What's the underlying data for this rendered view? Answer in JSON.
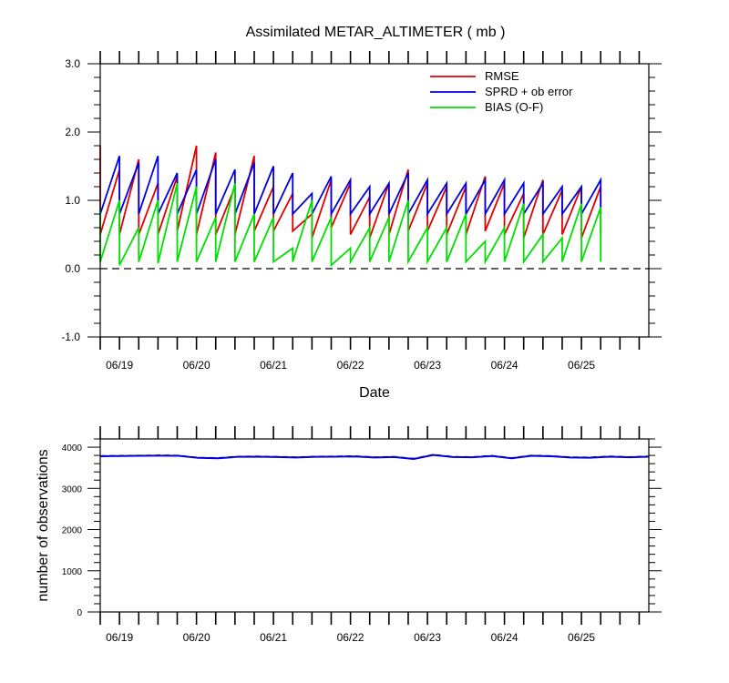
{
  "chart_data": [
    {
      "type": "line",
      "title": "Assimilated METAR_ALTIMETER ( mb )",
      "xlabel": "Date",
      "ylabel": "",
      "ylim": [
        -1.0,
        3.0
      ],
      "yticks": [
        "-1.0",
        "0.0",
        "1.0",
        "2.0",
        "3.0"
      ],
      "xlim": [
        "06/18 18Z",
        "06/25 21Z"
      ],
      "xticks": [
        "06/19",
        "06/20",
        "06/21",
        "06/22",
        "06/23",
        "06/24",
        "06/25"
      ],
      "legend": "top-right",
      "zero_line": "dashed",
      "colors": {
        "RMSE": "#e00000",
        "SPRD": "#0000e0",
        "BIAS": "#00e000"
      },
      "note_times": "6-hourly cycles starting 06/18 18Z; each cycle shows prior (high) then posterior (low) value",
      "series": [
        {
          "name": "RMSE",
          "key": "rmse",
          "prior": [
            1.8,
            1.45,
            1.6,
            1.25,
            1.35,
            1.8,
            1.7,
            1.2,
            1.65,
            1.2,
            1.1,
            0.8,
            1.3,
            1.25,
            1.05,
            1.25,
            1.45,
            1.25,
            1.2,
            1.2,
            1.35,
            1.25,
            1.1,
            1.3,
            1.15,
            1.2,
            1.2
          ],
          "posterior": [
            0.5,
            0.5,
            0.5,
            0.5,
            0.55,
            0.5,
            0.5,
            0.5,
            0.55,
            0.55,
            0.55,
            0.45,
            0.6,
            0.5,
            0.45,
            0.5,
            0.55,
            0.55,
            0.5,
            0.5,
            0.55,
            0.5,
            0.45,
            0.5,
            0.5,
            0.45,
            0.5
          ]
        },
        {
          "name": "SPRD + ob error",
          "key": "sprd",
          "prior": [
            0.9,
            1.65,
            1.55,
            1.65,
            1.4,
            1.45,
            1.6,
            1.45,
            1.55,
            1.5,
            1.4,
            1.1,
            1.35,
            1.3,
            1.2,
            1.25,
            1.4,
            1.3,
            1.25,
            1.25,
            1.3,
            1.3,
            1.25,
            1.25,
            1.2,
            1.2,
            1.3
          ],
          "posterior": [
            0.8,
            0.8,
            0.8,
            0.8,
            0.8,
            0.8,
            0.8,
            0.8,
            0.8,
            0.8,
            0.8,
            0.8,
            0.8,
            0.8,
            0.8,
            0.8,
            0.8,
            0.8,
            0.8,
            0.8,
            0.8,
            0.8,
            0.8,
            0.8,
            0.8,
            0.8,
            0.8
          ]
        },
        {
          "name": "BIAS (O-F)",
          "key": "bias",
          "prior": [
            0.9,
            1.0,
            0.6,
            1.0,
            1.25,
            1.2,
            0.75,
            1.25,
            0.8,
            0.75,
            0.3,
            1.0,
            0.75,
            0.3,
            0.6,
            0.75,
            1.0,
            0.6,
            0.6,
            0.8,
            0.4,
            0.6,
            0.95,
            0.5,
            0.45,
            0.95,
            0.9
          ],
          "posterior": [
            0.1,
            0.05,
            0.1,
            0.08,
            0.1,
            0.1,
            0.1,
            0.1,
            0.1,
            0.1,
            0.1,
            0.1,
            0.05,
            0.1,
            0.1,
            0.1,
            0.1,
            0.1,
            0.1,
            0.1,
            0.1,
            0.1,
            0.1,
            0.1,
            0.1,
            0.1,
            0.1
          ]
        }
      ]
    },
    {
      "type": "line",
      "title": "",
      "xlabel": "",
      "ylabel": "number of observations",
      "ylim": [
        0,
        4200
      ],
      "yticks": [
        "0",
        "1000",
        "2000",
        "3000",
        "4000"
      ],
      "xlim": [
        "06/18 18Z",
        "06/25 21Z"
      ],
      "xticks": [
        "06/19",
        "06/20",
        "06/21",
        "06/22",
        "06/23",
        "06/24",
        "06/25"
      ],
      "colors": {
        "possible": "#000000",
        "assimilated": "#0000e0"
      },
      "series": [
        {
          "name": "",
          "key": "possible",
          "values": [
            3790,
            3795,
            3800,
            3805,
            3800,
            3750,
            3740,
            3775,
            3780,
            3770,
            3760,
            3775,
            3780,
            3785,
            3760,
            3770,
            3725,
            3820,
            3770,
            3765,
            3795,
            3740,
            3800,
            3790,
            3760,
            3755,
            3780,
            3765,
            3780
          ]
        },
        {
          "name": "",
          "key": "assimilated",
          "values": [
            3780,
            3785,
            3790,
            3795,
            3790,
            3740,
            3730,
            3765,
            3770,
            3760,
            3750,
            3765,
            3770,
            3775,
            3750,
            3760,
            3715,
            3810,
            3760,
            3755,
            3785,
            3730,
            3790,
            3780,
            3750,
            3745,
            3770,
            3755,
            3770
          ]
        }
      ]
    }
  ]
}
